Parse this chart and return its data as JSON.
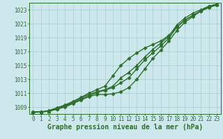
{
  "xlabel": "Graphe pression niveau de la mer (hPa)",
  "bg_color": "#cce8ec",
  "grid_color": "#aacccc",
  "line_color": "#2d6e2d",
  "ylim": [
    1008.0,
    1024.0
  ],
  "xlim": [
    -0.5,
    23.5
  ],
  "yticks": [
    1009,
    1011,
    1013,
    1015,
    1017,
    1019,
    1021,
    1023
  ],
  "xticks": [
    0,
    1,
    2,
    3,
    4,
    5,
    6,
    7,
    8,
    9,
    10,
    11,
    12,
    13,
    14,
    15,
    16,
    17,
    18,
    19,
    20,
    21,
    22,
    23
  ],
  "series": [
    [
      1008.3,
      1008.3,
      1008.4,
      1008.7,
      1009.0,
      1009.5,
      1010.0,
      1010.5,
      1010.8,
      1010.8,
      1010.9,
      1011.2,
      1011.8,
      1013.0,
      1014.5,
      1016.0,
      1017.2,
      1018.5,
      1020.0,
      1021.2,
      1022.0,
      1022.8,
      1023.5,
      1023.8
    ],
    [
      1008.3,
      1008.3,
      1008.4,
      1008.8,
      1009.2,
      1009.7,
      1010.3,
      1010.8,
      1011.2,
      1011.5,
      1012.0,
      1013.2,
      1014.0,
      1015.0,
      1016.2,
      1017.3,
      1018.2,
      1019.2,
      1020.8,
      1021.8,
      1022.5,
      1023.0,
      1023.5,
      1023.8
    ],
    [
      1008.2,
      1008.3,
      1008.4,
      1008.7,
      1009.1,
      1009.6,
      1010.1,
      1010.6,
      1011.1,
      1011.4,
      1011.8,
      1012.5,
      1013.2,
      1014.5,
      1015.8,
      1016.8,
      1017.8,
      1018.9,
      1020.5,
      1021.5,
      1022.2,
      1022.8,
      1023.4,
      1023.7
    ],
    [
      1008.3,
      1008.3,
      1008.5,
      1008.9,
      1009.3,
      1009.8,
      1010.4,
      1011.0,
      1011.5,
      1012.0,
      1013.5,
      1015.0,
      1016.0,
      1016.8,
      1017.5,
      1018.0,
      1018.5,
      1019.3,
      1020.5,
      1021.5,
      1022.2,
      1022.8,
      1023.3,
      1023.7
    ]
  ],
  "markers": [
    "D",
    "^",
    "D",
    "D"
  ],
  "markersizes": [
    2.5,
    3.5,
    2.5,
    2.5
  ],
  "linewidths": [
    1.0,
    1.0,
    1.0,
    1.0
  ],
  "title_fontsize": 7,
  "tick_fontsize": 5.5,
  "title_color": "#2d6e2d",
  "tick_color": "#2d6e2d",
  "font_family": "monospace"
}
